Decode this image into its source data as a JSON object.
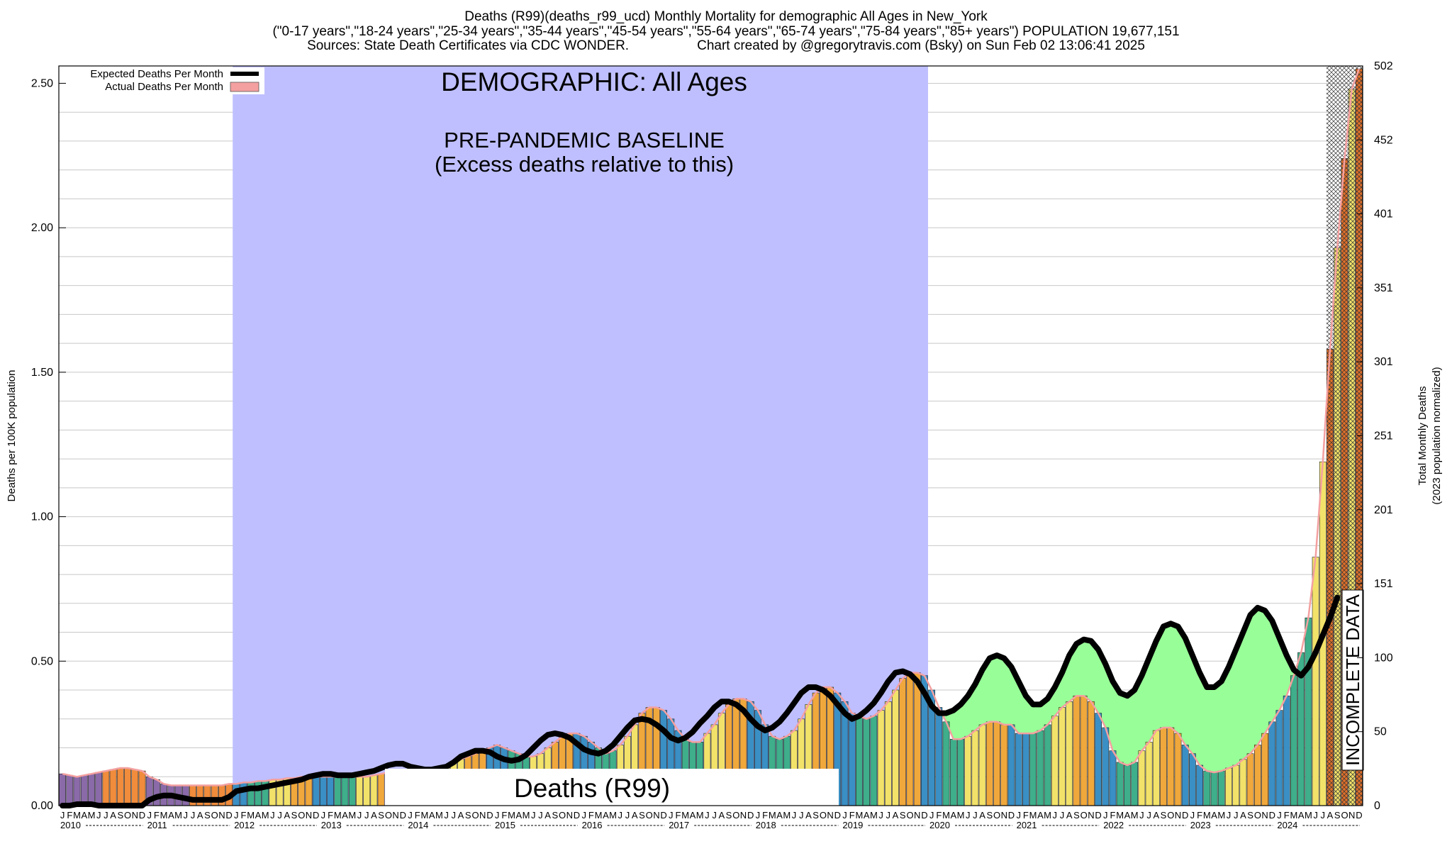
{
  "header": {
    "title": "Deaths (R99)(deaths_r99_ucd) Monthly Mortality for demographic All Ages in New_York",
    "groups_line": "(\"0-17 years\",\"18-24 years\",\"25-34 years\",\"35-44 years\",\"45-54 years\",\"55-64 years\",\"65-74 years\",\"75-84 years\",\"85+ years\") POPULATION 19,677,151",
    "sources": "Sources: State Death Certificates via CDC WONDER.",
    "credit": "Chart created by @gregorytravis.com (Bsky) on Sun Feb 02 13:06:41 2025"
  },
  "chart_data": {
    "type": "bar",
    "title": "DEMOGRAPHIC: All Ages",
    "baseline_label": "PRE-PANDEMIC BASELINE",
    "baseline_sublabel": "(Excess deaths relative to this)",
    "cause_label": "Deaths (R99)",
    "incomplete_label": "INCOMPLETE DATA",
    "ylabel": "Deaths per 100K population",
    "ylabel_right_1": "Total Monthly Deaths",
    "ylabel_right_2": "(2023 population normalized)",
    "ylim": [
      0,
      2.56
    ],
    "y_ticks": [
      "0.00",
      "0.50",
      "1.00",
      "1.50",
      "2.00",
      "2.50"
    ],
    "right_ticks": [
      "0",
      "50",
      "100",
      "151",
      "201",
      "251",
      "301",
      "351",
      "401",
      "452",
      "502"
    ],
    "month_letters": [
      "J",
      "F",
      "M",
      "A",
      "M",
      "J",
      "J",
      "A",
      "S",
      "O",
      "N",
      "D"
    ],
    "years": [
      "2010",
      "2011",
      "2012",
      "2013",
      "2014",
      "2015",
      "2016",
      "2017",
      "2018",
      "2019",
      "2020",
      "2021",
      "2022",
      "2023",
      "2024"
    ],
    "baseline_period": [
      "2012-01",
      "2019-12"
    ],
    "incomplete_period": [
      "2024-08",
      "2024-12"
    ],
    "legend": {
      "expected": "Expected Deaths Per Month",
      "actual": "Actual Deaths Per Month",
      "position": "top-left"
    },
    "colors": {
      "baseline_band": "#bfbfff",
      "excess_fill": "#98ff98",
      "expected_line": "#000000",
      "actual_line": "#f4a0a0",
      "winter": "#3a8fc4",
      "spring": "#3fae8a",
      "summer": "#f2e26a",
      "autumn": "#f0a83c",
      "early_years": "#8a6aa8",
      "early_autumn": "#f08c3c"
    },
    "grid": true,
    "series": [
      {
        "name": "Actual Deaths Per Month",
        "values": [
          0.11,
          0.105,
          0.1,
          0.105,
          0.11,
          0.115,
          0.12,
          0.125,
          0.13,
          0.13,
          0.125,
          0.12,
          0.1,
          0.09,
          0.075,
          0.07,
          0.07,
          0.07,
          0.07,
          0.07,
          0.07,
          0.07,
          0.07,
          0.075,
          0.075,
          0.08,
          0.08,
          0.085,
          0.085,
          0.09,
          0.09,
          0.095,
          0.095,
          0.1,
          0.1,
          0.1,
          0.1,
          0.1,
          0.1,
          0.1,
          0.1,
          0.1,
          0.1,
          0.105,
          0.11,
          0.115,
          0.12,
          0.12,
          0.125,
          0.125,
          0.125,
          0.13,
          0.135,
          0.14,
          0.15,
          0.16,
          0.17,
          0.18,
          0.19,
          0.2,
          0.21,
          0.2,
          0.19,
          0.18,
          0.17,
          0.17,
          0.18,
          0.2,
          0.22,
          0.24,
          0.25,
          0.25,
          0.24,
          0.22,
          0.2,
          0.18,
          0.19,
          0.21,
          0.24,
          0.28,
          0.32,
          0.34,
          0.34,
          0.33,
          0.3,
          0.26,
          0.23,
          0.22,
          0.22,
          0.25,
          0.28,
          0.32,
          0.35,
          0.37,
          0.37,
          0.36,
          0.33,
          0.28,
          0.24,
          0.23,
          0.24,
          0.26,
          0.3,
          0.35,
          0.39,
          0.41,
          0.41,
          0.39,
          0.36,
          0.32,
          0.31,
          0.3,
          0.31,
          0.33,
          0.36,
          0.4,
          0.44,
          0.46,
          0.46,
          0.45,
          0.4,
          0.34,
          0.29,
          0.23,
          0.23,
          0.24,
          0.26,
          0.28,
          0.29,
          0.29,
          0.28,
          0.28,
          0.25,
          0.25,
          0.25,
          0.26,
          0.28,
          0.31,
          0.34,
          0.36,
          0.38,
          0.38,
          0.36,
          0.32,
          0.27,
          0.19,
          0.15,
          0.14,
          0.15,
          0.19,
          0.22,
          0.26,
          0.27,
          0.27,
          0.25,
          0.21,
          0.18,
          0.14,
          0.12,
          0.115,
          0.12,
          0.13,
          0.14,
          0.16,
          0.18,
          0.21,
          0.25,
          0.29,
          0.33,
          0.38,
          0.45,
          0.53,
          0.65,
          0.86,
          1.19,
          1.58,
          1.93,
          2.24,
          2.48,
          2.55
        ]
      },
      {
        "name": "Expected Deaths Per Month",
        "values": [
          0.0,
          0.0,
          0.005,
          0.005,
          0.005,
          0.0,
          0.0,
          0.0,
          0.0,
          0.0,
          0.0,
          0.0,
          0.02,
          0.03,
          0.035,
          0.035,
          0.03,
          0.025,
          0.02,
          0.02,
          0.02,
          0.02,
          0.02,
          0.03,
          0.05,
          0.055,
          0.06,
          0.06,
          0.065,
          0.07,
          0.075,
          0.08,
          0.085,
          0.09,
          0.1,
          0.105,
          0.11,
          0.11,
          0.105,
          0.105,
          0.105,
          0.11,
          0.115,
          0.12,
          0.13,
          0.14,
          0.145,
          0.145,
          0.135,
          0.13,
          0.125,
          0.125,
          0.13,
          0.135,
          0.15,
          0.17,
          0.18,
          0.19,
          0.19,
          0.185,
          0.17,
          0.16,
          0.155,
          0.16,
          0.175,
          0.2,
          0.225,
          0.245,
          0.25,
          0.245,
          0.235,
          0.215,
          0.195,
          0.185,
          0.18,
          0.19,
          0.21,
          0.24,
          0.27,
          0.295,
          0.3,
          0.295,
          0.28,
          0.26,
          0.235,
          0.225,
          0.235,
          0.255,
          0.285,
          0.31,
          0.34,
          0.36,
          0.36,
          0.35,
          0.33,
          0.3,
          0.275,
          0.26,
          0.27,
          0.29,
          0.32,
          0.355,
          0.39,
          0.41,
          0.41,
          0.4,
          0.38,
          0.35,
          0.32,
          0.3,
          0.31,
          0.33,
          0.355,
          0.39,
          0.43,
          0.46,
          0.465,
          0.455,
          0.43,
          0.39,
          0.345,
          0.32,
          0.32,
          0.33,
          0.35,
          0.38,
          0.42,
          0.47,
          0.51,
          0.52,
          0.51,
          0.48,
          0.43,
          0.38,
          0.35,
          0.35,
          0.37,
          0.41,
          0.46,
          0.52,
          0.56,
          0.575,
          0.57,
          0.54,
          0.49,
          0.43,
          0.39,
          0.38,
          0.4,
          0.45,
          0.51,
          0.57,
          0.62,
          0.63,
          0.62,
          0.58,
          0.52,
          0.46,
          0.41,
          0.41,
          0.43,
          0.48,
          0.54,
          0.6,
          0.66,
          0.685,
          0.675,
          0.64,
          0.58,
          0.52,
          0.47,
          0.45,
          0.48,
          0.53,
          0.59,
          0.65,
          0.72
        ]
      }
    ]
  }
}
